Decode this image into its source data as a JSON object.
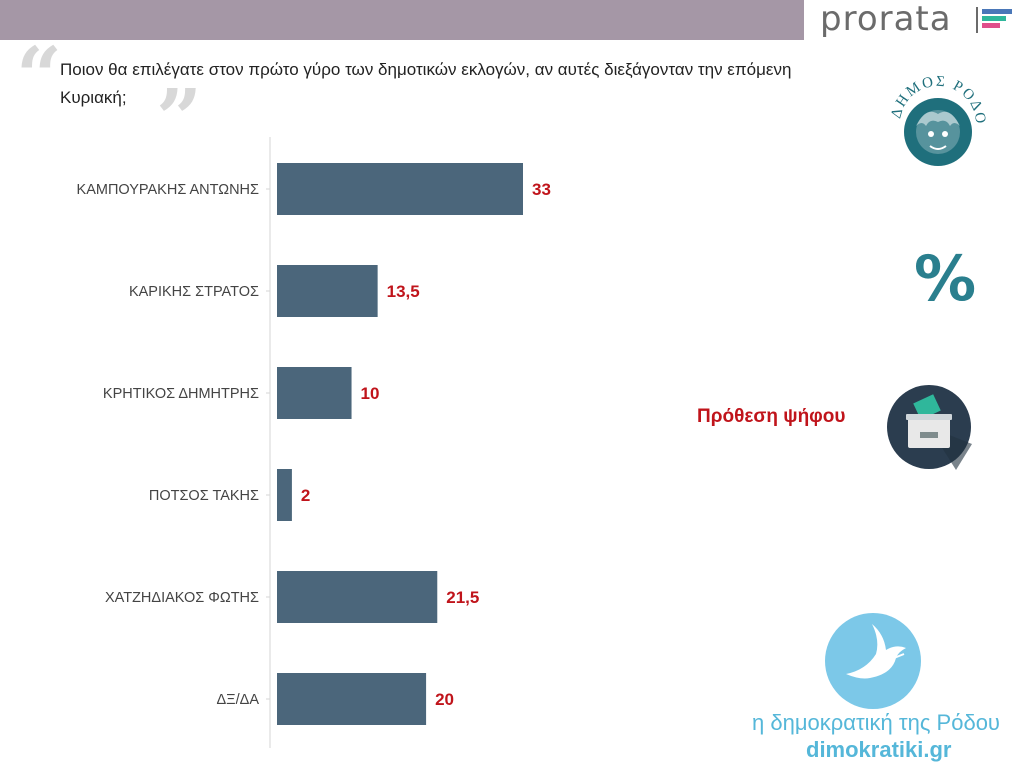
{
  "header": {
    "brand": "prorata",
    "brand_colors": [
      "#4a77b8",
      "#2fb79b",
      "#e04f8b"
    ]
  },
  "question": "Ποιον θα επιλέγατε στον πρώτο γύρο των δημοτικών εκλογών, αν αυτές διεξάγονταν την επόμενη Κυριακή;",
  "seal": {
    "text": "ΔΗΜΟΣ ΡΟΔΟΥ",
    "icon": "medusa-seal-icon",
    "color": "#1f6f7c"
  },
  "percent_icon": "%",
  "vote_intent": {
    "label": "Πρόθεση ψήφου",
    "icon": "ballot-box-icon"
  },
  "footer": {
    "line1": "η δημοκρατική της Ρόδου",
    "line2": "dimokratiki.gr",
    "icon": "dove-icon",
    "color": "#55b7d9"
  },
  "chart_data": {
    "type": "bar",
    "orientation": "horizontal",
    "categories": [
      "ΚΑΜΠΟΥΡΑΚΗΣ ΑΝΤΩΝΗΣ",
      "ΚΑΡΙΚΗΣ ΣΤΡΑΤΟΣ",
      "ΚΡΗΤΙΚΟΣ ΔΗΜΗΤΡΗΣ",
      "ΠΟΤΣΟΣ ΤΑΚΗΣ",
      "ΧΑΤΖΗΔΙΑΚΟΣ ΦΩΤΗΣ",
      "ΔΞ/ΔΑ"
    ],
    "values": [
      33,
      13.5,
      10,
      2,
      21.5,
      20
    ],
    "value_labels": [
      "33",
      "13,5",
      "10",
      "2",
      "21,5",
      "20"
    ],
    "bar_color": "#4b667b",
    "label_color": "#c0141b",
    "xlim": [
      0,
      50
    ],
    "grid": false,
    "legend": false
  }
}
